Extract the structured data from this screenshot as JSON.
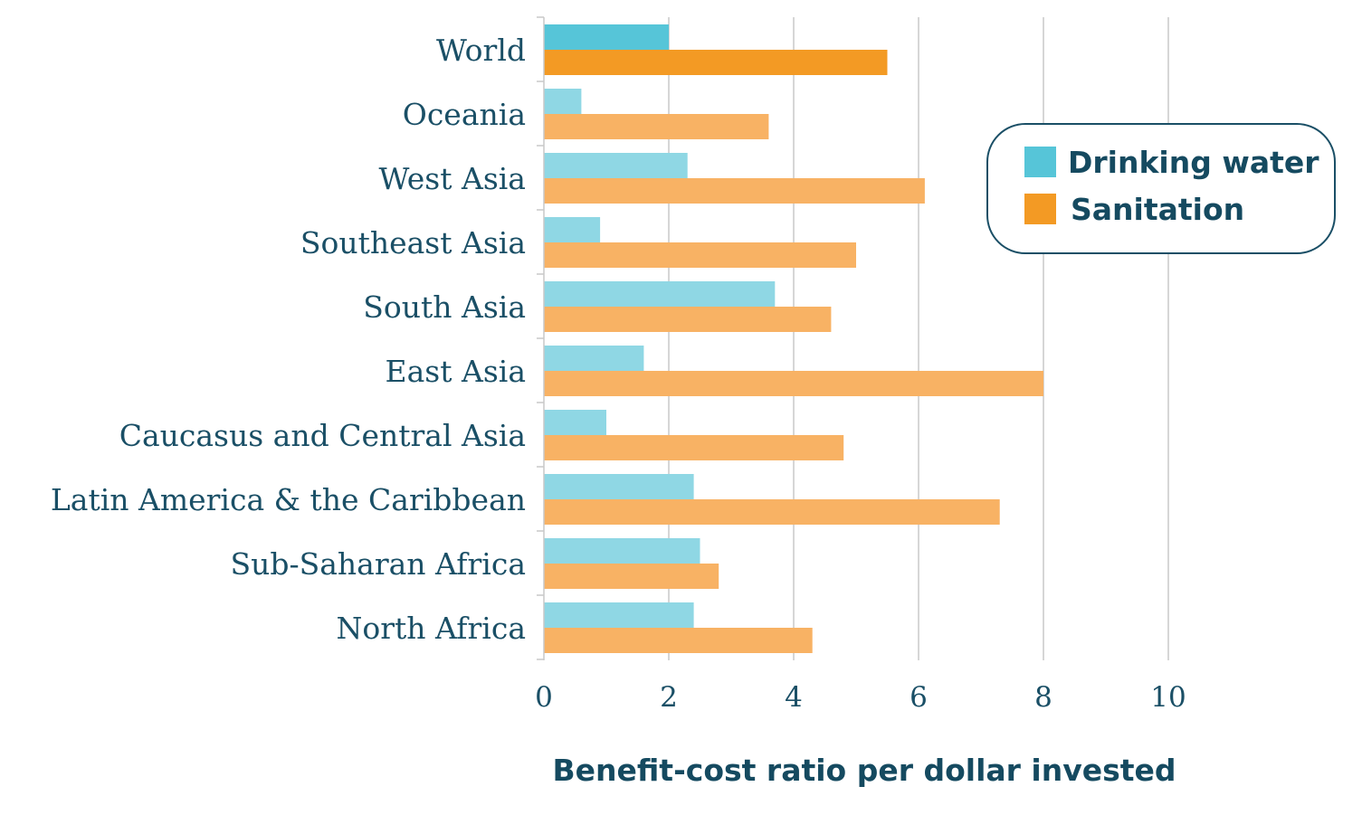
{
  "chart_data": {
    "type": "bar",
    "orientation": "horizontal",
    "categories": [
      "World",
      "Oceania",
      "West Asia",
      "Southeast Asia",
      "South Asia",
      "East Asia",
      "Caucasus and Central Asia",
      "Latin America & the Caribbean",
      "Sub-Saharan Africa",
      "North Africa"
    ],
    "series": [
      {
        "name": "Drinking water",
        "values": [
          2.0,
          0.6,
          2.3,
          0.9,
          3.7,
          1.6,
          1.0,
          2.4,
          2.5,
          2.4
        ]
      },
      {
        "name": "Sanitation",
        "values": [
          5.5,
          3.6,
          6.1,
          5.0,
          4.6,
          8.0,
          4.8,
          7.3,
          2.8,
          4.3
        ]
      }
    ],
    "xlabel": "Benefit-cost ratio per dollar invested",
    "ylabel": "",
    "xlim": [
      0,
      10
    ],
    "xticks": [
      0,
      2,
      4,
      6,
      8,
      10
    ],
    "grid": true,
    "legend_position": "top-right",
    "colors": {
      "drinking_water_highlight": "#56c5d8",
      "drinking_water": "#8fd7e4",
      "sanitation_highlight": "#f39a24",
      "sanitation": "#f8b264",
      "text": "#1a4f66",
      "grid": "#c8c8c8"
    }
  }
}
